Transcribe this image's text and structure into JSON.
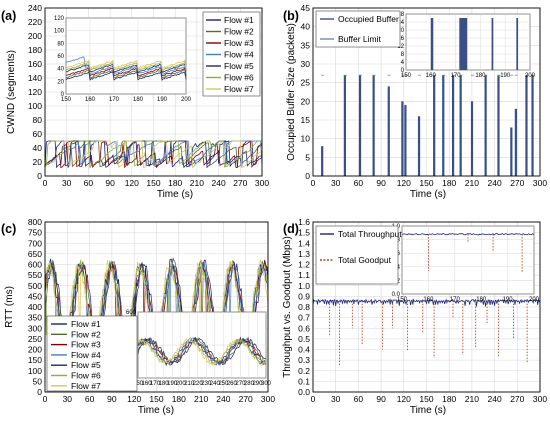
{
  "figure": {
    "colors": {
      "grid": "#d8d8d8",
      "axis": "#000000",
      "flows": [
        "#1a237e",
        "#556b2f",
        "#800000",
        "#4a7ec2",
        "#1f2a68",
        "#8fae3a",
        "#d9c45c"
      ],
      "throughput": "#1a237e",
      "goodput": "#b04a2a",
      "buffer_limit": "#7a86b8",
      "occupied": "#3a4f86"
    }
  },
  "chart_data": [
    {
      "id": "a",
      "panel_label": "(a)",
      "type": "line",
      "xlabel": "Time (s)",
      "ylabel": "CWND (segments)",
      "xlim": [
        0,
        300
      ],
      "ylim": [
        0,
        240
      ],
      "xticks": [
        0,
        30,
        60,
        90,
        120,
        150,
        180,
        210,
        240,
        270,
        300
      ],
      "yticks": [
        0,
        20,
        40,
        60,
        80,
        100,
        120,
        140,
        160,
        180,
        200,
        220,
        240
      ],
      "grid": true,
      "legend_position": "top-right",
      "series": [
        {
          "name": "Flow #1"
        },
        {
          "name": "Flow #2"
        },
        {
          "name": "Flow #3"
        },
        {
          "name": "Flow #4"
        },
        {
          "name": "Flow #5"
        },
        {
          "name": "Flow #6"
        },
        {
          "name": "Flow #7"
        }
      ],
      "cwnd_range": [
        10,
        50
      ],
      "inset": {
        "xlim": [
          150,
          200
        ],
        "ylim": [
          0,
          120
        ],
        "xticks": [
          150,
          160,
          170,
          180,
          190,
          200
        ],
        "yticks": [
          0,
          20,
          40,
          60,
          80,
          100,
          120
        ]
      }
    },
    {
      "id": "b",
      "panel_label": "(b)",
      "type": "bar",
      "xlabel": "Time (s)",
      "ylabel": "Occupied Buffer Size (packets)",
      "xlim": [
        0,
        300
      ],
      "ylim": [
        0,
        45
      ],
      "xticks": [
        0,
        30,
        60,
        90,
        120,
        150,
        180,
        210,
        240,
        270,
        300
      ],
      "yticks": [
        0,
        5,
        10,
        15,
        20,
        25,
        30,
        35,
        40,
        45
      ],
      "grid": true,
      "legend_position": "top-left",
      "legend": [
        "Occupied Buffer",
        "Buffer Limit"
      ],
      "buffer_limit": 27,
      "bursts": [
        {
          "t": 12,
          "h": 8
        },
        {
          "t": 42,
          "h": 27
        },
        {
          "t": 62,
          "h": 27
        },
        {
          "t": 80,
          "h": 27
        },
        {
          "t": 100,
          "h": 24
        },
        {
          "t": 118,
          "h": 20
        },
        {
          "t": 122,
          "h": 19
        },
        {
          "t": 140,
          "h": 16
        },
        {
          "t": 160,
          "h": 27
        },
        {
          "t": 172,
          "h": 27
        },
        {
          "t": 185,
          "h": 27
        },
        {
          "t": 195,
          "h": 27
        },
        {
          "t": 210,
          "h": 20
        },
        {
          "t": 228,
          "h": 27
        },
        {
          "t": 245,
          "h": 27
        },
        {
          "t": 262,
          "h": 13
        },
        {
          "t": 268,
          "h": 18
        },
        {
          "t": 282,
          "h": 27
        },
        {
          "t": 290,
          "h": 27
        }
      ],
      "inset": {
        "xlim": [
          150,
          200
        ],
        "ylim": [
          0,
          28
        ],
        "xticks": [
          150,
          160,
          170,
          180,
          190,
          200
        ],
        "yticks": [
          0,
          4,
          8,
          12,
          16,
          20,
          24,
          28
        ],
        "bursts": [
          {
            "t": 160,
            "w": 1.0,
            "h": 26
          },
          {
            "t": 171.5,
            "w": 3.2,
            "h": 26
          },
          {
            "t": 184.5,
            "w": 0.7,
            "h": 26
          },
          {
            "t": 194.5,
            "w": 0.7,
            "h": 26
          }
        ]
      }
    },
    {
      "id": "c",
      "panel_label": "(c)",
      "type": "line",
      "xlabel": "Time (s)",
      "ylabel": "RTT (ms)",
      "xlim": [
        0,
        300
      ],
      "ylim": [
        0,
        800
      ],
      "xticks": [
        0,
        30,
        60,
        90,
        120,
        150,
        180,
        210,
        240,
        270,
        300
      ],
      "yticks": [
        0,
        50,
        100,
        150,
        200,
        250,
        300,
        350,
        400,
        450,
        500,
        550,
        600,
        650,
        700,
        750,
        800
      ],
      "grid": true,
      "legend_position": "bottom-left",
      "series": [
        {
          "name": "Flow #1"
        },
        {
          "name": "Flow #2"
        },
        {
          "name": "Flow #3"
        },
        {
          "name": "Flow #4"
        },
        {
          "name": "Flow #5"
        },
        {
          "name": "Flow #6"
        },
        {
          "name": "Flow #7"
        }
      ],
      "rtt_range": [
        150,
        700
      ],
      "inset": {
        "xlim": [
          150,
          300
        ],
        "ylim": [
          200,
          600
        ],
        "xticks": [
          150,
          160,
          170,
          180,
          190,
          200,
          210,
          220,
          230,
          240,
          250,
          260,
          270,
          280,
          290,
          300
        ],
        "yticks": [
          200,
          400,
          600
        ]
      }
    },
    {
      "id": "d",
      "panel_label": "(d)",
      "type": "line",
      "xlabel": "Time (s)",
      "ylabel": "Throughput vs. Goodput (Mbps)",
      "xlim": [
        0,
        300
      ],
      "ylim": [
        0,
        1.6
      ],
      "xticks": [
        0,
        30,
        60,
        90,
        120,
        150,
        180,
        210,
        240,
        270,
        300
      ],
      "yticks": [
        0.0,
        0.1,
        0.2,
        0.3,
        0.4,
        0.5,
        0.6,
        0.7,
        0.8,
        0.9,
        1.0,
        1.1,
        1.2,
        1.3,
        1.4,
        1.5,
        1.6
      ],
      "grid": true,
      "legend_position": "top-left",
      "legend": [
        "Total Throughput",
        "Total Goodput"
      ],
      "steady": 0.86,
      "goodput_dips": [
        {
          "t": 22,
          "v": 0.52
        },
        {
          "t": 35,
          "v": 0.25
        },
        {
          "t": 52,
          "v": 0.6
        },
        {
          "t": 65,
          "v": 0.45
        },
        {
          "t": 92,
          "v": 0.4
        },
        {
          "t": 105,
          "v": 0.6
        },
        {
          "t": 125,
          "v": 0.38
        },
        {
          "t": 145,
          "v": 0.55
        },
        {
          "t": 160,
          "v": 0.32
        },
        {
          "t": 185,
          "v": 0.7
        },
        {
          "t": 198,
          "v": 0.35
        },
        {
          "t": 215,
          "v": 0.42
        },
        {
          "t": 230,
          "v": 0.65
        },
        {
          "t": 245,
          "v": 0.33
        },
        {
          "t": 265,
          "v": 0.5
        },
        {
          "t": 283,
          "v": 0.28
        }
      ],
      "inset": {
        "xlim": [
          150,
          200
        ],
        "ylim": [
          0,
          1.0
        ],
        "xticks": [
          150,
          160,
          170,
          180,
          190,
          200
        ],
        "yticks": [
          0.0,
          0.2,
          0.4,
          0.6,
          0.8,
          1.0
        ],
        "goodput_dips": [
          {
            "t": 160,
            "v": 0.34
          },
          {
            "t": 175,
            "v": 0.75
          },
          {
            "t": 184.5,
            "v": 0.62
          },
          {
            "t": 195.5,
            "v": 0.32
          }
        ]
      }
    }
  ]
}
